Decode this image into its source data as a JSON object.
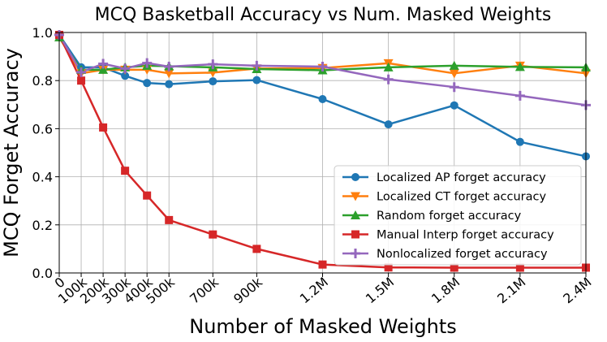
{
  "chart_data": {
    "type": "line",
    "title": "MCQ Basketball Accuracy vs Num. Masked Weights",
    "xlabel": "Number of Masked Weights",
    "ylabel": "MCQ Forget Accuracy",
    "ylim": [
      0,
      1.0
    ],
    "grid": true,
    "legend_position": "lower-right",
    "x": [
      0,
      100000,
      200000,
      300000,
      400000,
      500000,
      700000,
      900000,
      1200000,
      1500000,
      1800000,
      2100000,
      2400000
    ],
    "x_tick_labels": [
      "0",
      "100k",
      "200k",
      "300k",
      "400k",
      "500k",
      "700k",
      "900k",
      "1.2M",
      "1.5M",
      "1.8M",
      "2.1M",
      "2.4M"
    ],
    "y_ticks": [
      0.0,
      0.2,
      0.4,
      0.6,
      0.8,
      1.0
    ],
    "y_tick_labels": [
      "0.0",
      "0.2",
      "0.4",
      "0.6",
      "0.8",
      "1.0"
    ],
    "series": [
      {
        "name": "Localized AP forget accuracy",
        "color": "#1f77b4",
        "marker": "circle",
        "values": [
          0.99,
          0.855,
          0.855,
          0.82,
          0.79,
          0.785,
          0.797,
          0.802,
          0.723,
          0.618,
          0.697,
          0.545,
          0.485
        ]
      },
      {
        "name": "Localized CT forget accuracy",
        "color": "#ff7f0e",
        "marker": "triangle-down",
        "values": [
          0.98,
          0.83,
          0.845,
          0.845,
          0.845,
          0.83,
          0.833,
          0.85,
          0.852,
          0.872,
          0.83,
          0.862,
          0.83
        ]
      },
      {
        "name": "Random forget accuracy",
        "color": "#2ca02c",
        "marker": "triangle-up",
        "values": [
          0.98,
          0.845,
          0.845,
          0.855,
          0.862,
          0.86,
          0.855,
          0.848,
          0.843,
          0.855,
          0.862,
          0.857,
          0.855
        ]
      },
      {
        "name": "Manual Interp forget accuracy",
        "color": "#d62728",
        "marker": "square",
        "values": [
          0.99,
          0.8,
          0.605,
          0.425,
          0.322,
          0.22,
          0.16,
          0.1,
          0.035,
          0.023,
          0.022,
          0.022,
          0.022
        ]
      },
      {
        "name": "Nonlocalized forget accuracy",
        "color": "#9467bd",
        "marker": "plus",
        "values": [
          0.99,
          0.835,
          0.87,
          0.85,
          0.873,
          0.858,
          0.868,
          0.862,
          0.858,
          0.805,
          0.773,
          0.737,
          0.698
        ]
      }
    ]
  }
}
